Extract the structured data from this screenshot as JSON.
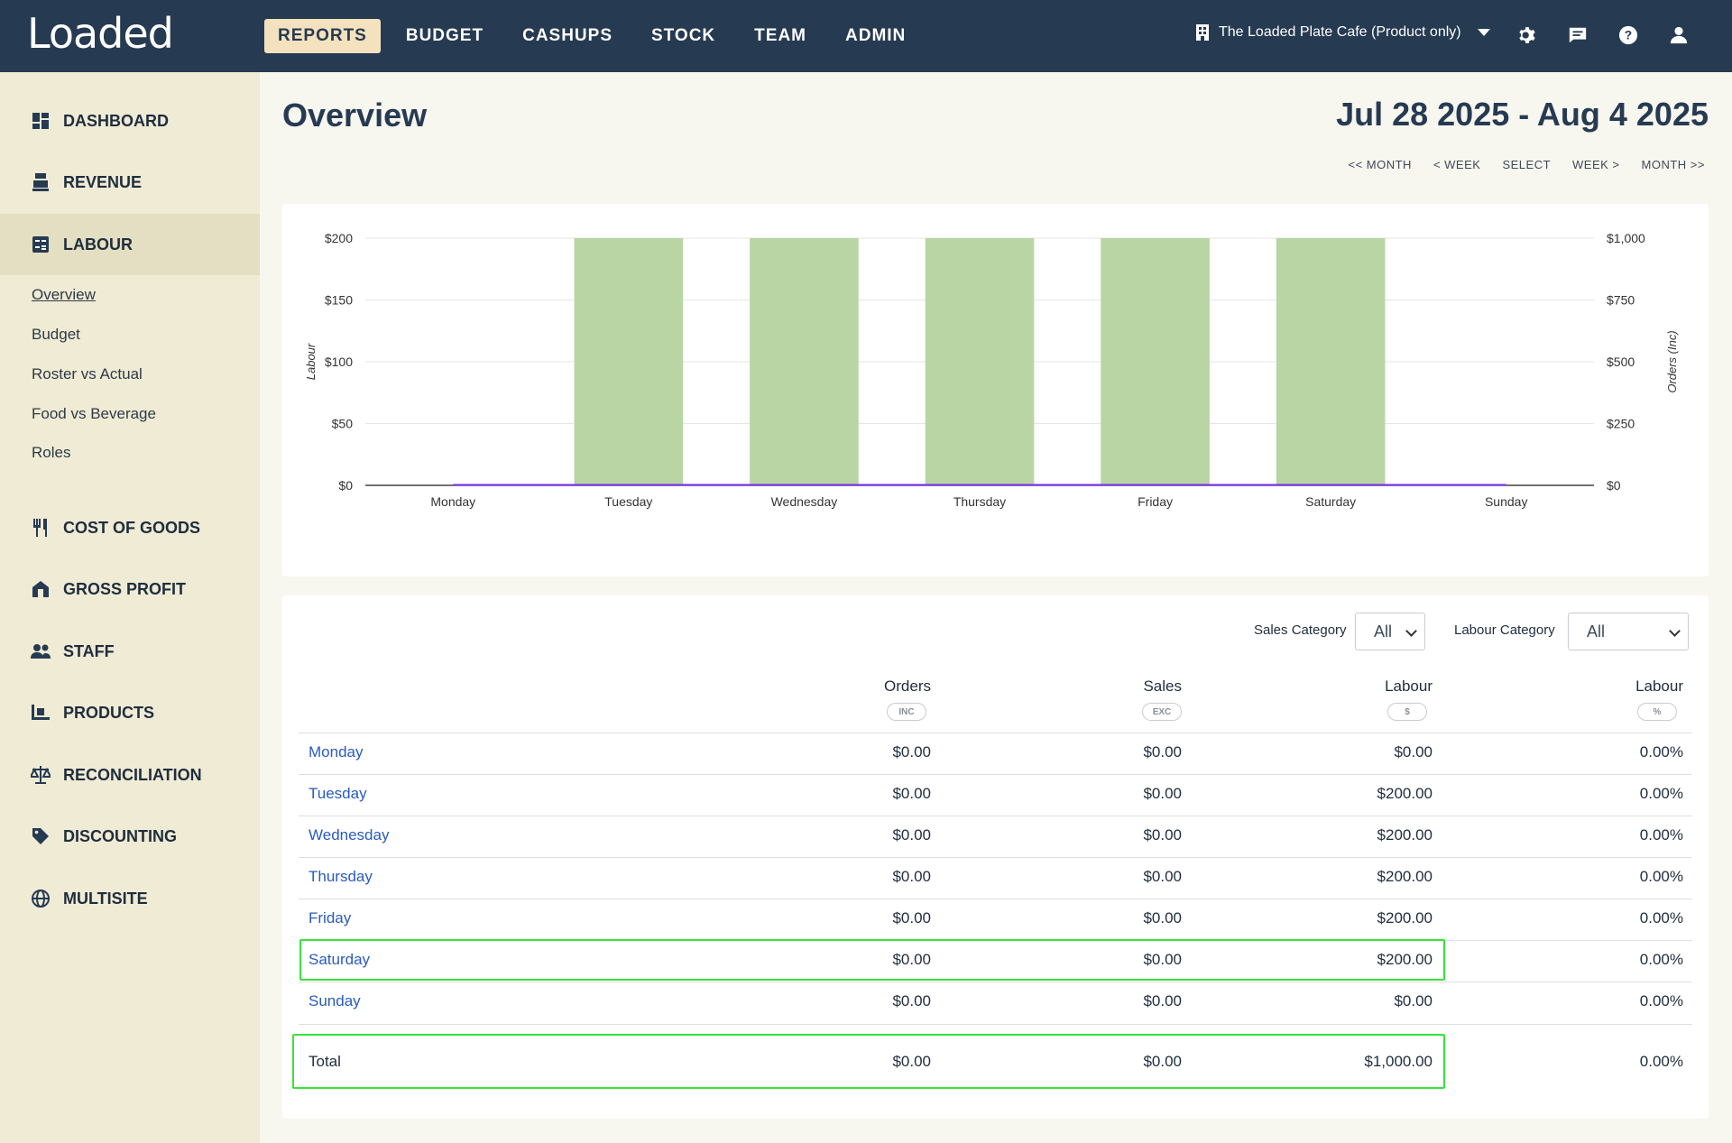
{
  "app": {
    "logo": "Loaded"
  },
  "nav": {
    "items": [
      "REPORTS",
      "BUDGET",
      "CASHUPS",
      "STOCK",
      "TEAM",
      "ADMIN"
    ]
  },
  "site": {
    "name": "The Loaded Plate Cafe (Product only)"
  },
  "sidebar": {
    "items": [
      "DASHBOARD",
      "REVENUE",
      "LABOUR",
      "COST OF GOODS",
      "GROSS PROFIT",
      "STAFF",
      "PRODUCTS",
      "RECONCILIATION",
      "DISCOUNTING",
      "MULTISITE"
    ],
    "sub_items": [
      "Overview",
      "Budget",
      "Roster vs Actual",
      "Food vs Beverage",
      "Roles"
    ]
  },
  "page": {
    "title": "Overview",
    "date_range": "Jul 28 2025 - Aug 4 2025",
    "date_nav": [
      "<< MONTH",
      "< WEEK",
      "SELECT",
      "WEEK >",
      "MONTH >>"
    ]
  },
  "colors": {
    "accent": "#263a52",
    "bar": "#b9d5a3",
    "line": "#7b2ff2",
    "highlight": "#39e33a",
    "link": "#2a5bbf"
  },
  "chart_data": {
    "type": "bar",
    "categories": [
      "Monday",
      "Tuesday",
      "Wednesday",
      "Thursday",
      "Friday",
      "Saturday",
      "Sunday"
    ],
    "series": [
      {
        "name": "Labour",
        "type": "bar",
        "values": [
          0,
          200,
          200,
          200,
          200,
          200,
          0
        ]
      },
      {
        "name": "Orders (Inc)",
        "type": "line",
        "values": [
          0,
          0,
          0,
          0,
          0,
          0,
          0
        ]
      }
    ],
    "ylabel": "Labour",
    "y2label": "Orders (Inc)",
    "ylim": [
      0,
      200
    ],
    "y2lim": [
      0,
      1000
    ],
    "yticks": [
      "$0",
      "$50",
      "$100",
      "$150",
      "$200"
    ],
    "y2ticks": [
      "$0",
      "$250",
      "$500",
      "$750",
      "$1,000"
    ]
  },
  "filters": {
    "sales_label": "Sales Category",
    "sales_value": "All",
    "labour_label": "Labour Category",
    "labour_value": "All"
  },
  "table": {
    "columns": [
      {
        "label": "Orders",
        "sub": "INC"
      },
      {
        "label": "Sales",
        "sub": "EXC"
      },
      {
        "label": "Labour",
        "sub": "$"
      },
      {
        "label": "Labour",
        "sub": "%"
      }
    ],
    "rows": [
      {
        "day": "Monday",
        "orders": "$0.00",
        "sales": "$0.00",
        "labour": "$0.00",
        "pct": "0.00%"
      },
      {
        "day": "Tuesday",
        "orders": "$0.00",
        "sales": "$0.00",
        "labour": "$200.00",
        "pct": "0.00%"
      },
      {
        "day": "Wednesday",
        "orders": "$0.00",
        "sales": "$0.00",
        "labour": "$200.00",
        "pct": "0.00%"
      },
      {
        "day": "Thursday",
        "orders": "$0.00",
        "sales": "$0.00",
        "labour": "$200.00",
        "pct": "0.00%"
      },
      {
        "day": "Friday",
        "orders": "$0.00",
        "sales": "$0.00",
        "labour": "$200.00",
        "pct": "0.00%"
      },
      {
        "day": "Saturday",
        "orders": "$0.00",
        "sales": "$0.00",
        "labour": "$200.00",
        "pct": "0.00%"
      },
      {
        "day": "Sunday",
        "orders": "$0.00",
        "sales": "$0.00",
        "labour": "$0.00",
        "pct": "0.00%"
      }
    ],
    "total": {
      "label": "Total",
      "orders": "$0.00",
      "sales": "$0.00",
      "labour": "$1,000.00",
      "pct": "0.00%"
    }
  }
}
